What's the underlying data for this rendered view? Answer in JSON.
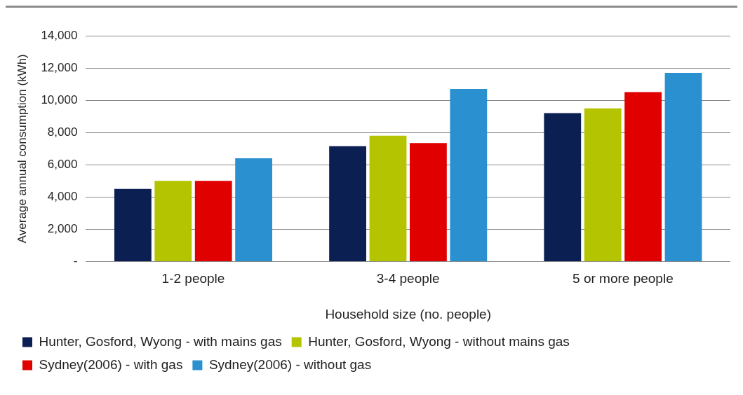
{
  "chart_data": {
    "type": "bar",
    "xlabel": "Household size (no. people)",
    "ylabel": "Average annual consumption (kWh)",
    "categories": [
      "1-2 people",
      "3-4 people",
      "5 or more people"
    ],
    "series": [
      {
        "name": "Hunter, Gosford, Wyong - with mains gas",
        "color": "#0b1f52",
        "values": [
          4500,
          7150,
          9200
        ]
      },
      {
        "name": "Hunter, Gosford, Wyong - without mains gas",
        "color": "#b5c400",
        "values": [
          5000,
          7800,
          9500
        ]
      },
      {
        "name": "Sydney(2006) - with gas",
        "color": "#e00000",
        "values": [
          5000,
          7350,
          10500
        ]
      },
      {
        "name": "Sydney(2006) - without gas",
        "color": "#2b90d0",
        "values": [
          6400,
          10700,
          11700
        ]
      }
    ],
    "ylim": [
      0,
      14000
    ],
    "yticks": [
      {
        "value": 0,
        "label": "-"
      },
      {
        "value": 2000,
        "label": "2,000"
      },
      {
        "value": 4000,
        "label": "4,000"
      },
      {
        "value": 6000,
        "label": "6,000"
      },
      {
        "value": 8000,
        "label": "8,000"
      },
      {
        "value": 10000,
        "label": "10,000"
      },
      {
        "value": 12000,
        "label": "12,000"
      },
      {
        "value": 14000,
        "label": "14,000"
      }
    ],
    "grid": "y",
    "legend": "bottom"
  }
}
